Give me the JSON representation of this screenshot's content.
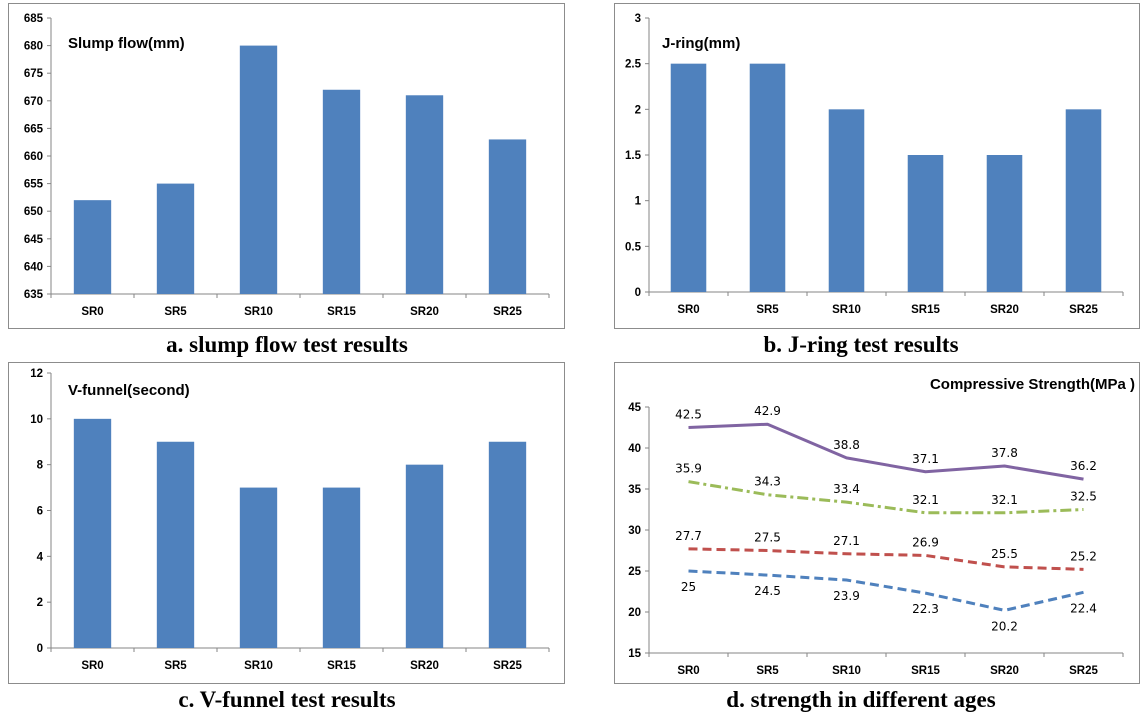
{
  "colors": {
    "bar": "#4f81bd",
    "frame": "#8c8c8c"
  },
  "chart_data": [
    {
      "id": "a",
      "type": "bar",
      "title": "Slump flow(mm)",
      "caption": "a. slump flow test results",
      "categories": [
        "SR0",
        "SR5",
        "SR10",
        "SR15",
        "SR20",
        "SR25"
      ],
      "values": [
        652,
        655,
        680,
        672,
        671,
        663
      ],
      "ylim": [
        635,
        685
      ],
      "yticks": [
        "635",
        "640",
        "645",
        "650",
        "655",
        "660",
        "665",
        "670",
        "675",
        "680",
        "685"
      ],
      "xlabel": "",
      "ylabel": "",
      "grid": false,
      "legend": "none"
    },
    {
      "id": "b",
      "type": "bar",
      "title": "J-ring(mm)",
      "caption": "b. J-ring test results",
      "categories": [
        "SR0",
        "SR5",
        "SR10",
        "SR15",
        "SR20",
        "SR25"
      ],
      "values": [
        2.5,
        2.5,
        2,
        1.5,
        1.5,
        2
      ],
      "ylim": [
        0,
        3
      ],
      "yticks": [
        "0",
        "0.5",
        "1",
        "1.5",
        "2",
        "2.5",
        "3"
      ],
      "xlabel": "",
      "ylabel": "",
      "grid": false,
      "legend": "none"
    },
    {
      "id": "c",
      "type": "bar",
      "title": "V-funnel(second)",
      "caption": "c. V-funnel test results",
      "categories": [
        "SR0",
        "SR5",
        "SR10",
        "SR15",
        "SR20",
        "SR25"
      ],
      "values": [
        10,
        9,
        7,
        7,
        8,
        9
      ],
      "ylim": [
        0,
        12
      ],
      "yticks": [
        "0",
        "2",
        "4",
        "6",
        "8",
        "10",
        "12"
      ],
      "xlabel": "",
      "ylabel": "",
      "grid": false,
      "legend": "none"
    },
    {
      "id": "d",
      "type": "line",
      "title": "Compressive Strength(MPa )",
      "caption": "d. strength in different ages",
      "categories": [
        "SR0",
        "SR5",
        "SR10",
        "SR15",
        "SR20",
        "SR25"
      ],
      "ylim": [
        15,
        45
      ],
      "yticks": [
        "15",
        "20",
        "25",
        "30",
        "35",
        "40",
        "45"
      ],
      "xlabel": "",
      "ylabel": "",
      "grid": false,
      "legend": "none",
      "series": [
        {
          "values": [
            42.5,
            42.9,
            38.8,
            37.1,
            37.8,
            36.2
          ],
          "labels": [
            "42.5",
            "42.9",
            "38.8",
            "37.1",
            "37.8",
            "36.2"
          ],
          "color": "#8064a2",
          "dash": "solid",
          "label_pos": "above"
        },
        {
          "values": [
            35.9,
            34.3,
            33.4,
            32.1,
            32.1,
            32.5
          ],
          "labels": [
            "35.9",
            "34.3",
            "33.4",
            "32.1",
            "32.1",
            "32.5"
          ],
          "color": "#9bbb59",
          "dash": "dashdot",
          "label_pos": "above"
        },
        {
          "values": [
            27.7,
            27.5,
            27.1,
            26.9,
            25.5,
            25.2
          ],
          "labels": [
            "27.7",
            "27.5",
            "27.1",
            "26.9",
            "25.5",
            "25.2"
          ],
          "color": "#c0504d",
          "dash": "dash",
          "label_pos": "above"
        },
        {
          "values": [
            25,
            24.5,
            23.9,
            22.3,
            20.2,
            22.4
          ],
          "labels": [
            "25",
            "24.5",
            "23.9",
            "22.3",
            "20.2",
            "22.4"
          ],
          "color": "#4f81bd",
          "dash": "dash",
          "label_pos": "below"
        }
      ]
    }
  ]
}
